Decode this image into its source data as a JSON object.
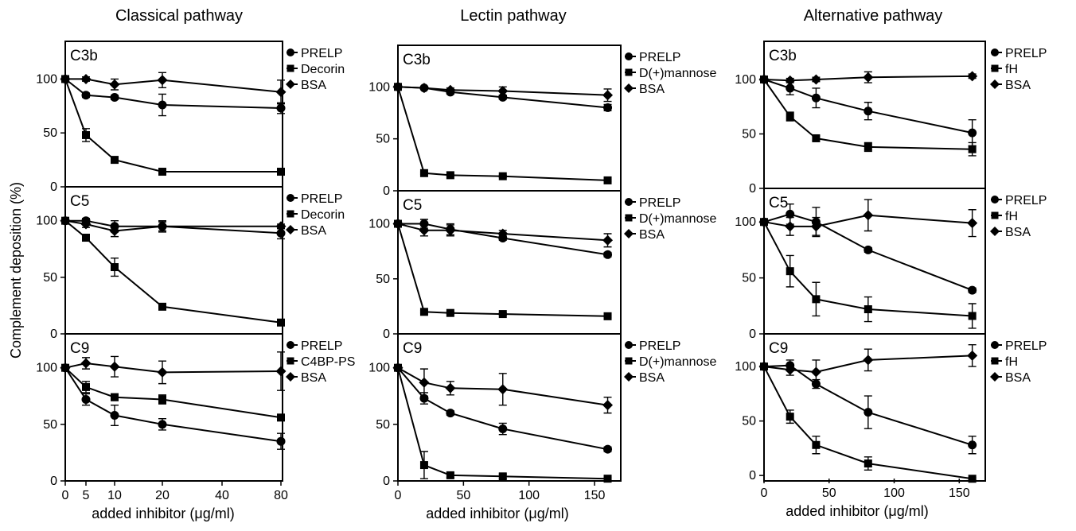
{
  "y_label": "Complement deposition (%)",
  "chart_data": [
    {
      "type": "line",
      "title": "Classical pathway",
      "xlabel": "added inhibitor (μg/ml)",
      "x_axis": "categorical",
      "x_ticks": [
        "0",
        "5",
        "10",
        "20",
        "40",
        "80"
      ],
      "panels": [
        {
          "label": "C3b",
          "ylim": [
            0,
            135
          ],
          "y_ticks": [
            "0",
            "50",
            "100"
          ],
          "series": [
            {
              "name": "PRELP",
              "marker": "circle",
              "x": [
                "0",
                "5",
                "10",
                "20",
                "80"
              ],
              "y": [
                100,
                85,
                83,
                76,
                73
              ],
              "err": [
                0,
                2,
                2,
                10,
                5
              ]
            },
            {
              "name": "Decorin",
              "marker": "square",
              "x": [
                "0",
                "5",
                "10",
                "20",
                "80"
              ],
              "y": [
                100,
                48,
                25,
                14,
                14
              ],
              "err": [
                0,
                6,
                2,
                1,
                1
              ]
            },
            {
              "name": "BSA",
              "marker": "diamond",
              "x": [
                "0",
                "5",
                "10",
                "20",
                "80"
              ],
              "y": [
                100,
                100,
                95,
                99,
                88
              ],
              "err": [
                0,
                2,
                5,
                7,
                11
              ]
            }
          ]
        },
        {
          "label": "C5",
          "ylim": [
            0,
            130
          ],
          "y_ticks": [
            "0",
            "50",
            "100"
          ],
          "series": [
            {
              "name": "PRELP",
              "marker": "circle",
              "x": [
                "0",
                "5",
                "10",
                "20",
                "80"
              ],
              "y": [
                100,
                100,
                95,
                95,
                89
              ],
              "err": [
                0,
                2,
                5,
                5,
                5
              ]
            },
            {
              "name": "Decorin",
              "marker": "square",
              "x": [
                "0",
                "5",
                "10",
                "20",
                "80"
              ],
              "y": [
                100,
                85,
                59,
                24,
                10
              ],
              "err": [
                0,
                3,
                8,
                2,
                1
              ]
            },
            {
              "name": "BSA",
              "marker": "diamond",
              "x": [
                "0",
                "5",
                "10",
                "20",
                "80"
              ],
              "y": [
                100,
                97,
                91,
                95,
                95
              ],
              "err": [
                0,
                3,
                5,
                4,
                2
              ]
            }
          ]
        },
        {
          "label": "C9",
          "ylim": [
            0,
            130
          ],
          "y_ticks": [
            "0",
            "50",
            "100"
          ],
          "series": [
            {
              "name": "PRELP",
              "marker": "circle",
              "x": [
                "0",
                "5",
                "10",
                "20",
                "80"
              ],
              "y": [
                100,
                72,
                58,
                50,
                35
              ],
              "err": [
                0,
                5,
                9,
                5,
                7
              ]
            },
            {
              "name": "C4BP-PS",
              "marker": "square",
              "x": [
                "0",
                "5",
                "10",
                "20",
                "80"
              ],
              "y": [
                100,
                83,
                74,
                72,
                56
              ],
              "err": [
                0,
                5,
                3,
                4,
                2
              ]
            },
            {
              "name": "BSA",
              "marker": "diamond",
              "x": [
                "0",
                "5",
                "10",
                "20",
                "80"
              ],
              "y": [
                100,
                104,
                101,
                96,
                97
              ],
              "err": [
                0,
                5,
                9,
                10,
                17
              ]
            }
          ]
        }
      ]
    },
    {
      "type": "line",
      "title": "Lectin pathway",
      "xlabel": "added inhibitor (μg/ml)",
      "x_axis": "linear",
      "xlim": [
        0,
        170
      ],
      "x_ticks": [
        "0",
        "50",
        "100",
        "150"
      ],
      "panels": [
        {
          "label": "C3b",
          "ylim": [
            0,
            140
          ],
          "y_ticks": [
            "0",
            "50",
            "100"
          ],
          "series": [
            {
              "name": "PRELP",
              "marker": "circle",
              "x": [
                0,
                20,
                40,
                80,
                160
              ],
              "y": [
                100,
                99,
                95,
                90,
                80
              ],
              "err": [
                0,
                1,
                2,
                2,
                3
              ]
            },
            {
              "name": "D(+)mannose",
              "marker": "square",
              "x": [
                0,
                20,
                40,
                80,
                160
              ],
              "y": [
                100,
                17,
                15,
                14,
                10
              ],
              "err": [
                0,
                1,
                1,
                1,
                1
              ]
            },
            {
              "name": "BSA",
              "marker": "diamond",
              "x": [
                0,
                20,
                40,
                80,
                160
              ],
              "y": [
                100,
                99,
                97,
                96,
                92
              ],
              "err": [
                0,
                1,
                2,
                4,
                6
              ]
            }
          ]
        },
        {
          "label": "C5",
          "ylim": [
            0,
            130
          ],
          "y_ticks": [
            "0",
            "50",
            "100"
          ],
          "series": [
            {
              "name": "PRELP",
              "marker": "circle",
              "x": [
                0,
                20,
                40,
                80,
                160
              ],
              "y": [
                100,
                100,
                95,
                87,
                72
              ],
              "err": [
                0,
                4,
                5,
                2,
                2
              ]
            },
            {
              "name": "D(+)mannose",
              "marker": "square",
              "x": [
                0,
                20,
                40,
                80,
                160
              ],
              "y": [
                100,
                20,
                19,
                18,
                16
              ],
              "err": [
                0,
                1,
                1,
                1,
                1
              ]
            },
            {
              "name": "BSA",
              "marker": "diamond",
              "x": [
                0,
                20,
                40,
                80,
                160
              ],
              "y": [
                100,
                94,
                94,
                91,
                85
              ],
              "err": [
                0,
                5,
                5,
                3,
                6
              ]
            }
          ]
        },
        {
          "label": "C9",
          "ylim": [
            0,
            130
          ],
          "y_ticks": [
            "0",
            "50",
            "100"
          ],
          "series": [
            {
              "name": "PRELP",
              "marker": "circle",
              "x": [
                0,
                20,
                40,
                80,
                160
              ],
              "y": [
                100,
                73,
                60,
                46,
                28
              ],
              "err": [
                0,
                5,
                2,
                5,
                2
              ]
            },
            {
              "name": "D(+)mannose",
              "marker": "square",
              "x": [
                0,
                20,
                40,
                80,
                160
              ],
              "y": [
                100,
                14,
                5,
                4,
                2
              ],
              "err": [
                0,
                12,
                2,
                2,
                1
              ]
            },
            {
              "name": "BSA",
              "marker": "diamond",
              "x": [
                0,
                20,
                40,
                80,
                160
              ],
              "y": [
                100,
                87,
                82,
                81,
                67
              ],
              "err": [
                0,
                12,
                6,
                14,
                7
              ]
            }
          ]
        }
      ]
    },
    {
      "type": "line",
      "title": "Alternative pathway",
      "xlabel": "added inhibitor (μg/ml)",
      "x_axis": "linear",
      "xlim": [
        0,
        170
      ],
      "x_ticks": [
        "0",
        "50",
        "100",
        "150"
      ],
      "panels": [
        {
          "label": "C3b",
          "ylim": [
            0,
            135
          ],
          "y_ticks": [
            "0",
            "50",
            "100"
          ],
          "series": [
            {
              "name": "PRELP",
              "marker": "circle",
              "x": [
                0,
                20,
                40,
                80,
                160
              ],
              "y": [
                100,
                92,
                83,
                71,
                51
              ],
              "err": [
                0,
                6,
                9,
                8,
                12
              ]
            },
            {
              "name": "fH",
              "marker": "square",
              "x": [
                0,
                20,
                40,
                80,
                160
              ],
              "y": [
                100,
                66,
                46,
                38,
                36
              ],
              "err": [
                0,
                4,
                2,
                4,
                6
              ]
            },
            {
              "name": "BSA",
              "marker": "diamond",
              "x": [
                0,
                20,
                40,
                80,
                160
              ],
              "y": [
                100,
                99,
                100,
                102,
                103
              ],
              "err": [
                0,
                2,
                2,
                5,
                2
              ]
            }
          ]
        },
        {
          "label": "C5",
          "ylim": [
            0,
            130
          ],
          "y_ticks": [
            "0",
            "50",
            "100"
          ],
          "series": [
            {
              "name": "PRELP",
              "marker": "circle",
              "x": [
                0,
                20,
                40,
                80,
                160
              ],
              "y": [
                100,
                107,
                100,
                75,
                39
              ],
              "err": [
                0,
                9,
                13,
                2,
                2
              ]
            },
            {
              "name": "fH",
              "marker": "square",
              "x": [
                0,
                20,
                40,
                80,
                160
              ],
              "y": [
                100,
                56,
                31,
                22,
                16
              ],
              "err": [
                0,
                14,
                15,
                11,
                11
              ]
            },
            {
              "name": "BSA",
              "marker": "diamond",
              "x": [
                0,
                20,
                40,
                80,
                160
              ],
              "y": [
                100,
                96,
                96,
                106,
                99
              ],
              "err": [
                0,
                8,
                8,
                14,
                12
              ]
            }
          ]
        },
        {
          "label": "C9",
          "ylim": [
            -5,
            130
          ],
          "y_ticks": [
            "0",
            "50",
            "100"
          ],
          "series": [
            {
              "name": "PRELP",
              "marker": "circle",
              "x": [
                0,
                20,
                40,
                80,
                160
              ],
              "y": [
                100,
                101,
                84,
                58,
                28
              ],
              "err": [
                0,
                5,
                4,
                15,
                8
              ]
            },
            {
              "name": "fH",
              "marker": "square",
              "x": [
                0,
                20,
                40,
                80,
                160
              ],
              "y": [
                100,
                54,
                28,
                11,
                -3
              ],
              "err": [
                0,
                6,
                8,
                6,
                1
              ]
            },
            {
              "name": "BSA",
              "marker": "diamond",
              "x": [
                0,
                20,
                40,
                80,
                160
              ],
              "y": [
                100,
                97,
                95,
                106,
                110
              ],
              "err": [
                0,
                5,
                11,
                10,
                10
              ]
            }
          ]
        }
      ]
    }
  ]
}
